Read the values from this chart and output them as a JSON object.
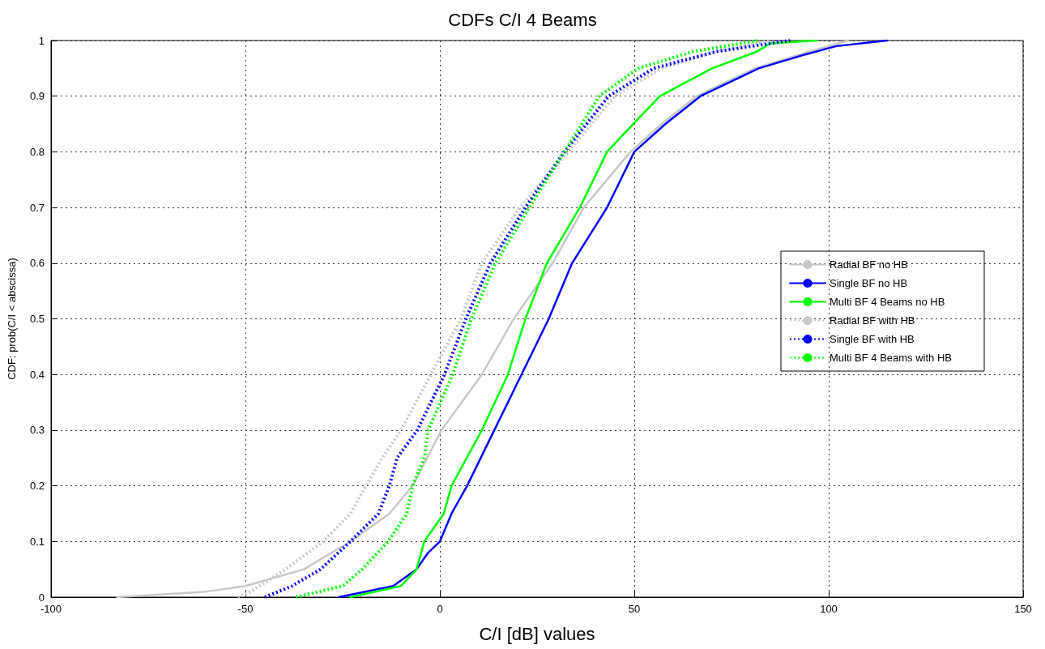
{
  "chart_data": {
    "type": "line",
    "title": "CDFs C/I 4 Beams",
    "xlabel": "C/I [dB] values",
    "ylabel": "CDF: prob(C/I < abscissa)",
    "xlim": [
      -100,
      150
    ],
    "xticks": [
      -100,
      -50,
      0,
      50,
      100,
      150
    ],
    "ylim": [
      0,
      1
    ],
    "yticks": [
      0,
      0.1,
      0.2,
      0.3,
      0.4,
      0.5,
      0.6,
      0.7,
      0.8,
      0.9,
      1
    ],
    "grid": true,
    "legend": "right",
    "marker": "none",
    "series": [
      {
        "name": "Radial BF no HB",
        "color": "#c8c8c8",
        "line_style": "solid",
        "x": [
          -83,
          -60,
          -50,
          -35,
          -23,
          -13,
          -7,
          0.4,
          10.8,
          19,
          29,
          37,
          49,
          57,
          66,
          81,
          95,
          105
        ],
        "values": [
          0,
          0.01,
          0.02,
          0.05,
          0.1,
          0.15,
          0.2,
          0.3,
          0.4,
          0.5,
          0.6,
          0.7,
          0.8,
          0.85,
          0.9,
          0.95,
          0.98,
          1
        ]
      },
      {
        "name": "Single BF no HB",
        "color": "#0000ff",
        "line_style": "solid",
        "x": [
          -26,
          -12,
          -8,
          -6,
          -3,
          0,
          3,
          7,
          14,
          21,
          28,
          34,
          43,
          50,
          58,
          67,
          82,
          94,
          102,
          115
        ],
        "values": [
          0,
          0.02,
          0.04,
          0.05,
          0.08,
          0.1,
          0.15,
          0.2,
          0.3,
          0.4,
          0.5,
          0.6,
          0.7,
          0.8,
          0.85,
          0.9,
          0.95,
          0.975,
          0.99,
          1
        ]
      },
      {
        "name": "Multi BF 4 Beams no HB",
        "color": "#00ff00",
        "line_style": "solid",
        "x": [
          -23,
          -10,
          -6,
          -4,
          1,
          3,
          10.8,
          17.5,
          22,
          27.5,
          36,
          43,
          49.7,
          56.6,
          70,
          81.5,
          85,
          97
        ],
        "values": [
          0,
          0.02,
          0.05,
          0.1,
          0.15,
          0.2,
          0.3,
          0.4,
          0.5,
          0.6,
          0.7,
          0.8,
          0.85,
          0.9,
          0.95,
          0.98,
          0.995,
          1
        ]
      },
      {
        "name": "Radial BF with HB",
        "color": "#c8c8c8",
        "line_style": "dotted",
        "x": [
          -52,
          -48.6,
          -39.7,
          -30,
          -23,
          -19,
          -14.8,
          -10,
          -2.3,
          5.4,
          10.8,
          20.6,
          33,
          45,
          57,
          71,
          85
        ],
        "values": [
          0,
          0.01,
          0.05,
          0.1,
          0.15,
          0.2,
          0.25,
          0.3,
          0.4,
          0.5,
          0.6,
          0.7,
          0.8,
          0.9,
          0.95,
          0.98,
          1
        ]
      },
      {
        "name": "Single BF with HB",
        "color": "#0000ff",
        "line_style": "dotted",
        "x": [
          -45,
          -38,
          -30.7,
          -23,
          -15.8,
          -13,
          -11,
          -5.8,
          1.2,
          6.7,
          13,
          22,
          32,
          43.4,
          55,
          71,
          90
        ],
        "values": [
          0,
          0.02,
          0.05,
          0.1,
          0.15,
          0.2,
          0.25,
          0.3,
          0.4,
          0.5,
          0.6,
          0.7,
          0.8,
          0.9,
          0.95,
          0.98,
          1
        ]
      },
      {
        "name": "Multi BF 4 Beams with HB",
        "color": "#00ff00",
        "line_style": "dotted",
        "x": [
          -37,
          -25,
          -20,
          -13.3,
          -8.5,
          -7,
          -4,
          -3,
          3.3,
          8.1,
          14.3,
          23,
          32,
          41,
          51,
          65,
          82
        ],
        "values": [
          0,
          0.02,
          0.05,
          0.1,
          0.15,
          0.2,
          0.25,
          0.3,
          0.4,
          0.5,
          0.6,
          0.7,
          0.8,
          0.9,
          0.95,
          0.98,
          1
        ]
      }
    ]
  }
}
